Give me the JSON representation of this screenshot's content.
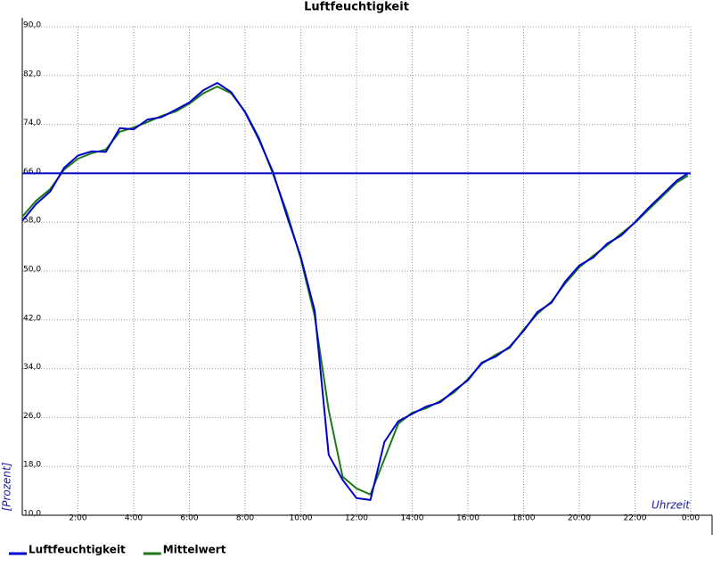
{
  "chart_data": {
    "type": "line",
    "title": "Luftfeuchtigkeit",
    "y_label": "[Prozent]",
    "x_label": "Uhrzeit",
    "xlim": [
      0,
      24
    ],
    "xticks": [
      {
        "value": 2,
        "label": "2:00"
      },
      {
        "value": 4,
        "label": "4:00"
      },
      {
        "value": 6,
        "label": "6:00"
      },
      {
        "value": 8,
        "label": "8:00"
      },
      {
        "value": 10,
        "label": "10:00"
      },
      {
        "value": 12,
        "label": "12:00"
      },
      {
        "value": 14,
        "label": "14:00"
      },
      {
        "value": 16,
        "label": "16:00"
      },
      {
        "value": 18,
        "label": "18:00"
      },
      {
        "value": 20,
        "label": "20:00"
      },
      {
        "value": 22,
        "label": "22:00"
      },
      {
        "value": 24,
        "label": "0:00"
      }
    ],
    "ylim": [
      10,
      90
    ],
    "yticks": [
      {
        "value": 10,
        "label": "10,0"
      },
      {
        "value": 18,
        "label": "18,0"
      },
      {
        "value": 26,
        "label": "26,0"
      },
      {
        "value": 34,
        "label": "34,0"
      },
      {
        "value": 42,
        "label": "42,0"
      },
      {
        "value": 50,
        "label": "50,0"
      },
      {
        "value": 58,
        "label": "58,0"
      },
      {
        "value": 66,
        "label": "66,0"
      },
      {
        "value": 74,
        "label": "74,0"
      },
      {
        "value": 82,
        "label": "82,0"
      },
      {
        "value": 90,
        "label": "90,0"
      }
    ],
    "grid": true,
    "reference_line": {
      "value": 66,
      "color": "#0000cc"
    },
    "x": [
      0,
      0.5,
      1,
      1.5,
      2,
      2.5,
      3,
      3.5,
      4,
      4.5,
      5,
      5.5,
      6,
      6.5,
      7,
      7.5,
      8,
      8.5,
      9,
      9.5,
      10,
      10.5,
      11,
      11.5,
      12,
      12.5,
      13,
      13.5,
      14,
      14.5,
      15,
      15.5,
      16,
      16.5,
      17,
      17.5,
      18,
      18.5,
      19,
      19.5,
      20,
      20.5,
      21,
      21.5,
      22,
      22.5,
      23,
      23.5,
      23.9
    ],
    "series": [
      {
        "name": "Luftfeuchtigkeit",
        "color": "#0000cc",
        "values": [
          58.2,
          61.0,
          63.0,
          66.9,
          68.9,
          69.6,
          69.5,
          73.4,
          73.2,
          74.8,
          75.2,
          76.4,
          77.6,
          79.6,
          80.8,
          79.3,
          76.0,
          71.5,
          66.2,
          59.0,
          52.3,
          43.5,
          19.9,
          15.8,
          12.8,
          12.5,
          22.0,
          25.4,
          26.6,
          27.8,
          28.5,
          30.4,
          32.1,
          35.0,
          36.0,
          37.6,
          40.2,
          43.3,
          44.8,
          48.3,
          50.9,
          52.2,
          54.5,
          55.8,
          58.0,
          60.4,
          62.6,
          64.8,
          66.0
        ]
      },
      {
        "name": "Mittelwert",
        "color": "#1a7a1a",
        "values": [
          58.9,
          61.5,
          63.4,
          66.6,
          68.4,
          69.3,
          69.9,
          72.8,
          73.5,
          74.4,
          75.4,
          76.1,
          77.4,
          79.1,
          80.2,
          79.1,
          76.1,
          71.8,
          65.9,
          59.6,
          52.0,
          42.6,
          27.2,
          16.3,
          14.4,
          13.4,
          19.2,
          25.0,
          26.8,
          27.5,
          28.7,
          30.1,
          32.3,
          34.8,
          36.3,
          37.4,
          40.4,
          43.0,
          45.0,
          48.0,
          50.6,
          52.5,
          54.2,
          56.1,
          57.9,
          60.1,
          62.3,
          64.5,
          65.6
        ]
      }
    ],
    "legend": "bottom-left"
  }
}
